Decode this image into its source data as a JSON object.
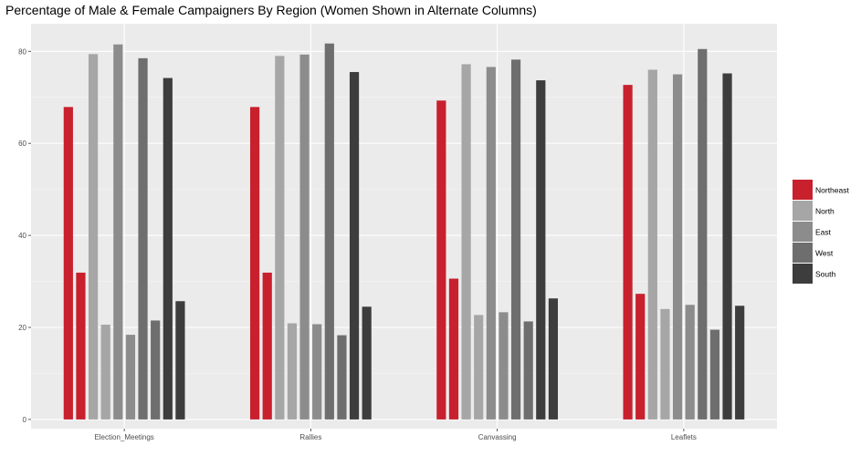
{
  "title": "Percentage of Male & Female Campaigners By Region (Women Shown in Alternate Columns)",
  "chart_data": {
    "type": "bar",
    "title": "Percentage of Male & Female Campaigners By Region (Women Shown in Alternate Columns)",
    "xlabel": "",
    "ylabel": "",
    "ylim": [
      -2,
      86
    ],
    "yticks": [
      0,
      20,
      40,
      60,
      80
    ],
    "grid": true,
    "legend_position": "right",
    "categories": [
      "Election_Meetings",
      "Rallies",
      "Canvassing",
      "Leaflets"
    ],
    "series": [
      {
        "name": "Northeast",
        "color": "#c8202d",
        "male": [
          67.9,
          67.9,
          69.3,
          72.7
        ],
        "female": [
          31.9,
          31.9,
          30.6,
          27.3
        ]
      },
      {
        "name": "North",
        "color": "#a6a6a6",
        "male": [
          79.4,
          79.0,
          77.2,
          76.0
        ],
        "female": [
          20.6,
          20.9,
          22.7,
          24.0
        ]
      },
      {
        "name": "East",
        "color": "#8c8c8c",
        "male": [
          81.5,
          79.3,
          76.6,
          75.0
        ],
        "female": [
          18.4,
          20.7,
          23.3,
          24.9
        ]
      },
      {
        "name": "West",
        "color": "#6e6e6e",
        "male": [
          78.5,
          81.7,
          78.2,
          80.5
        ],
        "female": [
          21.5,
          18.3,
          21.3,
          19.5
        ]
      },
      {
        "name": "South",
        "color": "#3d3d3d",
        "male": [
          74.2,
          75.5,
          73.7,
          75.2
        ],
        "female": [
          25.7,
          24.5,
          26.3,
          24.7
        ]
      }
    ]
  }
}
